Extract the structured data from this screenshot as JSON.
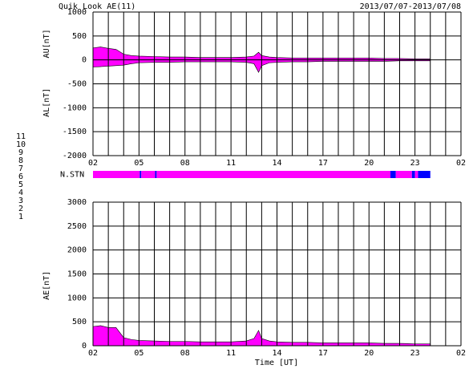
{
  "title": "Quik Look AE(11)",
  "date_range": "2013/07/07-2013/07/08",
  "x_label": "Time [UT]",
  "xgrid": [
    2,
    3,
    4,
    5,
    6,
    7,
    8,
    9,
    10,
    11,
    12,
    13,
    14,
    15,
    16,
    17,
    18,
    19,
    20,
    21,
    22,
    23,
    24,
    25,
    26
  ],
  "chart_data": [
    {
      "type": "area",
      "ylabels": [
        "AU[nT]",
        "AL[nT]"
      ],
      "xlim": [
        2,
        26
      ],
      "xticks": [
        {
          "value": 2,
          "label": "02"
        },
        {
          "value": 5,
          "label": "05"
        },
        {
          "value": 8,
          "label": "08"
        },
        11,
        14,
        17,
        20,
        23,
        {
          "value": 26,
          "label": "02"
        }
      ],
      "ylim": [
        -2000,
        1000
      ],
      "yticks": [
        -2000,
        -1500,
        -1000,
        -500,
        0,
        500,
        1000
      ],
      "x": [
        2,
        2.5,
        3,
        3.5,
        4,
        4.5,
        5,
        6,
        7,
        8,
        9,
        10,
        11,
        12,
        12.5,
        12.8,
        13,
        13.5,
        14,
        15,
        16,
        17,
        18,
        19,
        20,
        21,
        22,
        23,
        24
      ],
      "series": [
        {
          "color": "#ff00ff",
          "values": [
            250,
            270,
            240,
            220,
            120,
            90,
            80,
            70,
            60,
            60,
            50,
            50,
            50,
            60,
            80,
            160,
            90,
            60,
            50,
            40,
            40,
            40,
            40,
            40,
            40,
            30,
            30,
            20,
            20
          ]
        },
        {
          "color": "#ff00ff",
          "values": [
            -150,
            -140,
            -130,
            -120,
            -110,
            -80,
            -60,
            -50,
            -50,
            -40,
            -40,
            -40,
            -40,
            -50,
            -80,
            -260,
            -120,
            -60,
            -50,
            -40,
            -40,
            -30,
            -30,
            -30,
            -30,
            -30,
            -20,
            -20,
            -20
          ]
        }
      ]
    },
    {
      "type": "strip",
      "label": "N.STN",
      "xlim": [
        2,
        26
      ],
      "bins": [
        2,
        5.05,
        5.15,
        6.05,
        6.15,
        21.4,
        21.75,
        22.8,
        23.0,
        23.2,
        24
      ],
      "values": [
        10,
        9,
        10,
        9,
        10,
        9,
        10,
        9,
        10,
        9
      ],
      "legend": [
        {
          "name": "11",
          "color": "#00e0e0"
        },
        {
          "name": "10",
          "color": "#ff00ff"
        },
        {
          "name": "9",
          "color": "#0000ff"
        },
        {
          "name": "8",
          "color": "#e8e890"
        },
        {
          "name": "7",
          "color": "#90e890"
        },
        {
          "name": "6",
          "color": "#ff0000"
        },
        {
          "name": "5",
          "color": "#c0c0c0"
        },
        {
          "name": "4",
          "color": "#a0a0a0"
        },
        {
          "name": "3",
          "color": "#008080"
        },
        {
          "name": "2",
          "color": "#800080"
        },
        {
          "name": "1",
          "color": "#4040ff"
        }
      ]
    },
    {
      "type": "area",
      "ylabels": [
        "AE[nT]"
      ],
      "xlim": [
        2,
        26
      ],
      "xticks": [
        {
          "value": 2,
          "label": "02"
        },
        {
          "value": 5,
          "label": "05"
        },
        {
          "value": 8,
          "label": "08"
        },
        11,
        14,
        17,
        20,
        23,
        {
          "value": 26,
          "label": "02"
        }
      ],
      "ylim": [
        0,
        3000
      ],
      "yticks": [
        0,
        500,
        1000,
        1500,
        2000,
        2500,
        3000
      ],
      "x": [
        2,
        2.5,
        3,
        3.5,
        4,
        4.5,
        5,
        6,
        7,
        8,
        9,
        10,
        11,
        12,
        12.5,
        12.8,
        13,
        13.5,
        14,
        15,
        16,
        17,
        18,
        19,
        20,
        21,
        22,
        23,
        24
      ],
      "series": [
        {
          "color": "#ff00ff",
          "values": [
            400,
            420,
            380,
            380,
            170,
            130,
            110,
            100,
            90,
            90,
            80,
            80,
            80,
            100,
            150,
            320,
            150,
            100,
            80,
            70,
            70,
            60,
            60,
            60,
            60,
            50,
            50,
            40,
            40
          ]
        }
      ]
    }
  ]
}
